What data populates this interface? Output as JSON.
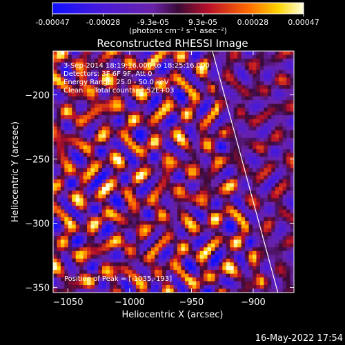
{
  "colorbar": {
    "ticks": [
      "-0.00047",
      "-0.00028",
      "-9.3e-05",
      "9.3e-05",
      "0.00028",
      "0.00047"
    ],
    "tick_values": [
      -0.00047,
      -0.00028,
      -9.3e-05,
      9.3e-05,
      0.00028,
      0.00047
    ],
    "range": [
      -0.00047,
      0.00047
    ],
    "units_label": "(photons cm⁻² s⁻¹ asec⁻²)"
  },
  "chart_data": {
    "type": "heatmap",
    "title": "Reconstructed RHESSI Image",
    "xlabel": "Heliocentric X (arcsec)",
    "ylabel": "Heliocentric Y (arcsec)",
    "xlim": [
      -1062,
      -867
    ],
    "ylim": [
      -354,
      -166
    ],
    "xticks": [
      -1050,
      -1000,
      -950,
      -900
    ],
    "xtick_labels": [
      "−1050",
      "−1000",
      "−950",
      "−900"
    ],
    "yticks": [
      -200,
      -250,
      -300,
      -350
    ],
    "ytick_labels": [
      "−200",
      "−250",
      "−300",
      "−350"
    ],
    "limb_line": [
      [
        -933,
        -166
      ],
      [
        -880,
        -354
      ]
    ],
    "annotations": [
      "3-Sep-2014 18:19:16.000 to 18:25:16.000",
      "Detectors: 3F 6F 9F, Att 0",
      "Energy Range: 25.0 - 50.0 keV",
      "Clean     Total counts: 2.52E+03"
    ],
    "peak_label": "Position of Peak = [-1035,-193]"
  },
  "footer": {
    "timestamp": "16-May-2022 17:54"
  }
}
